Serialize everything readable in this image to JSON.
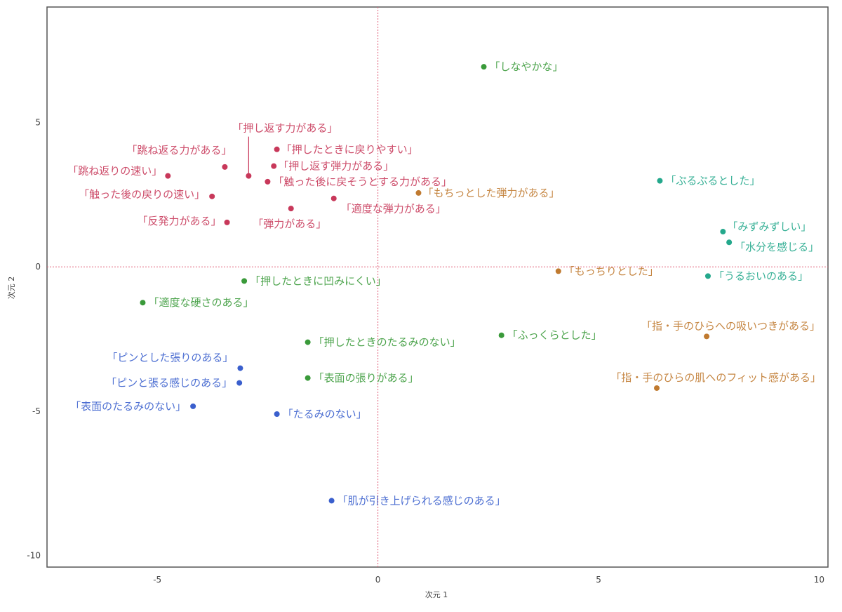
{
  "chart_data": {
    "type": "scatter",
    "title": "",
    "xlabel": "次元 1",
    "ylabel": "次元 2",
    "xlim": [
      -7.5,
      10.2
    ],
    "ylim": [
      -10.4,
      9.0
    ],
    "xticks": [
      -5,
      0,
      5,
      10
    ],
    "yticks": [
      -10,
      -5,
      0,
      5
    ],
    "grid": false,
    "reference_lines": {
      "x": 0,
      "y": 0,
      "color": "#e0607a",
      "style": "dotted"
    },
    "colors": {
      "red": "#c8385a",
      "orange": "#c07a30",
      "teal": "#24a88c",
      "green": "#3a9a3a",
      "blue": "#3a5fcd"
    },
    "points": [
      {
        "label": "「押し返す力がある」",
        "x": -2.93,
        "y": 3.15,
        "group": "red"
      },
      {
        "label": "「押したときに戻りやすい」",
        "x": -2.29,
        "y": 4.07,
        "group": "red"
      },
      {
        "label": "「跳ね返る力がある」",
        "x": -3.47,
        "y": 3.46,
        "group": "red"
      },
      {
        "label": "「押し返す弾力がある」",
        "x": -2.36,
        "y": 3.49,
        "group": "red"
      },
      {
        "label": "「跳ね返りの速い」",
        "x": -4.76,
        "y": 3.15,
        "group": "red"
      },
      {
        "label": "「触った後に戻そうとする力がある」",
        "x": -2.5,
        "y": 2.95,
        "group": "red"
      },
      {
        "label": "「触った後の戻りの速い」",
        "x": -3.76,
        "y": 2.44,
        "group": "red"
      },
      {
        "label": "「適度な弾力がある」",
        "x": -1.0,
        "y": 2.37,
        "group": "red"
      },
      {
        "label": "「弾力がある」",
        "x": -1.97,
        "y": 2.02,
        "group": "red"
      },
      {
        "label": "「反発力がある」",
        "x": -3.42,
        "y": 1.54,
        "group": "red"
      },
      {
        "label": "「もちっとした弾力がある」",
        "x": 0.92,
        "y": 2.56,
        "group": "orange"
      },
      {
        "label": "「もっちりとした」",
        "x": 4.09,
        "y": -0.15,
        "group": "orange"
      },
      {
        "label": "「指・手のひらへの吸いつきがある」",
        "x": 7.45,
        "y": -2.41,
        "group": "orange"
      },
      {
        "label": "「指・手のひらの肌へのフィット感がある」",
        "x": 6.32,
        "y": -4.2,
        "group": "orange"
      },
      {
        "label": "「ぷるぷるとした」",
        "x": 6.39,
        "y": 2.98,
        "group": "teal"
      },
      {
        "label": "「みずみずしい」",
        "x": 7.82,
        "y": 1.22,
        "group": "teal"
      },
      {
        "label": "「水分を感じる」",
        "x": 7.96,
        "y": 0.85,
        "group": "teal"
      },
      {
        "label": "「うるおいのある」",
        "x": 7.48,
        "y": -0.32,
        "group": "teal"
      },
      {
        "label": "「しなやかな」",
        "x": 2.4,
        "y": 6.93,
        "group": "green"
      },
      {
        "label": "「押したときに凹みにくい」",
        "x": -3.03,
        "y": -0.49,
        "group": "green"
      },
      {
        "label": "「適度な硬さのある」",
        "x": -5.33,
        "y": -1.24,
        "group": "green"
      },
      {
        "label": "「押したときのたるみのない」",
        "x": -1.59,
        "y": -2.61,
        "group": "green"
      },
      {
        "label": "「ふっくらとした」",
        "x": 2.8,
        "y": -2.37,
        "group": "green"
      },
      {
        "label": "「表面の張りがある」",
        "x": -1.59,
        "y": -3.85,
        "group": "green"
      },
      {
        "label": "「ピンとした張りのある」",
        "x": -3.12,
        "y": -3.51,
        "group": "blue"
      },
      {
        "label": "「ピンと張る感じのある」",
        "x": -3.14,
        "y": -4.02,
        "group": "blue"
      },
      {
        "label": "「表面のたるみのない」",
        "x": -4.19,
        "y": -4.83,
        "group": "blue"
      },
      {
        "label": "「たるみのない」",
        "x": -2.29,
        "y": -5.1,
        "group": "blue"
      },
      {
        "label": "「肌が引き上げられる感じのある」",
        "x": -1.05,
        "y": -8.1,
        "group": "blue"
      }
    ]
  }
}
